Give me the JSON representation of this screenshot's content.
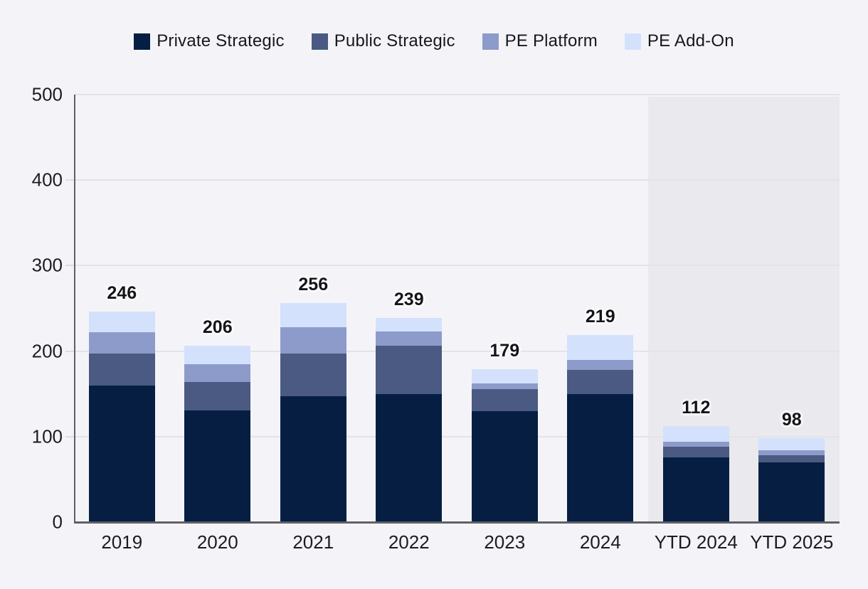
{
  "legend": {
    "items": [
      {
        "label": "Private Strategic",
        "color": "#061e42"
      },
      {
        "label": "Public Strategic",
        "color": "#4a5a82"
      },
      {
        "label": "PE Platform",
        "color": "#8d9bca"
      },
      {
        "label": "PE Add-On",
        "color": "#d3e1fd"
      }
    ]
  },
  "chart_data": {
    "type": "bar",
    "stacked": true,
    "title": "",
    "xlabel": "",
    "ylabel": "",
    "categories": [
      "2019",
      "2020",
      "2021",
      "2022",
      "2023",
      "2024",
      "YTD 2024",
      "YTD 2025"
    ],
    "series": [
      {
        "name": "Private Strategic",
        "color": "#061e42",
        "values": [
          160,
          131,
          147,
          150,
          130,
          150,
          76,
          70
        ]
      },
      {
        "name": "Public Strategic",
        "color": "#4a5a82",
        "values": [
          37,
          33,
          50,
          56,
          26,
          28,
          12,
          8
        ]
      },
      {
        "name": "PE Platform",
        "color": "#8d9bca",
        "values": [
          25,
          21,
          31,
          17,
          6,
          12,
          6,
          6
        ]
      },
      {
        "name": "PE Add-On",
        "color": "#d3e1fd",
        "values": [
          24,
          21,
          28,
          16,
          17,
          29,
          18,
          14
        ]
      }
    ],
    "totals": [
      246,
      206,
      256,
      239,
      179,
      219,
      112,
      98
    ],
    "ylim": [
      0,
      500
    ],
    "yticks": [
      0,
      100,
      200,
      300,
      400,
      500
    ],
    "grid": true,
    "legend_position": "top-center",
    "highlight_region": {
      "start_category": "YTD 2024",
      "end_category": "YTD 2025",
      "color": "#e9e9ee"
    }
  },
  "style": {
    "background": "#f4f4f8",
    "axis_color": "#5f6067",
    "gridline_color": "#e3e3e8",
    "text_color": "#17181c"
  }
}
